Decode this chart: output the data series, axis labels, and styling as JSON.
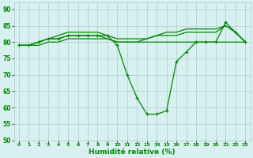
{
  "x": [
    0,
    1,
    2,
    3,
    4,
    5,
    6,
    7,
    8,
    9,
    10,
    11,
    12,
    13,
    14,
    15,
    16,
    17,
    18,
    19,
    20,
    21,
    22,
    23
  ],
  "line1": [
    79,
    79,
    80,
    81,
    82,
    83,
    83,
    83,
    83,
    82,
    81,
    81,
    81,
    81,
    82,
    83,
    83,
    84,
    84,
    84,
    84,
    85,
    83,
    80
  ],
  "line2": [
    79,
    79,
    80,
    81,
    81,
    82,
    82,
    82,
    82,
    81,
    80,
    80,
    80,
    81,
    82,
    82,
    82,
    83,
    83,
    83,
    83,
    85,
    83,
    80
  ],
  "line3": [
    79,
    79,
    80,
    81,
    81,
    82,
    82,
    82,
    82,
    82,
    79,
    70,
    63,
    58,
    58,
    59,
    74,
    77,
    80,
    80,
    80,
    86,
    83,
    80
  ],
  "line4": [
    79,
    79,
    79,
    80,
    80,
    81,
    81,
    81,
    81,
    81,
    80,
    80,
    80,
    80,
    80,
    80,
    80,
    80,
    80,
    80,
    80,
    80,
    80,
    80
  ],
  "bg_color": "#d8f0f0",
  "grid_color": "#aacccc",
  "line_color": "#008800",
  "xlabel": "Humidité relative (%)",
  "ylim": [
    50,
    92
  ],
  "xlim": [
    -0.5,
    23.5
  ],
  "yticks": [
    50,
    55,
    60,
    65,
    70,
    75,
    80,
    85,
    90
  ],
  "xticks": [
    0,
    1,
    2,
    3,
    4,
    5,
    6,
    7,
    8,
    9,
    10,
    11,
    12,
    13,
    14,
    15,
    16,
    17,
    18,
    19,
    20,
    21,
    22,
    23
  ]
}
